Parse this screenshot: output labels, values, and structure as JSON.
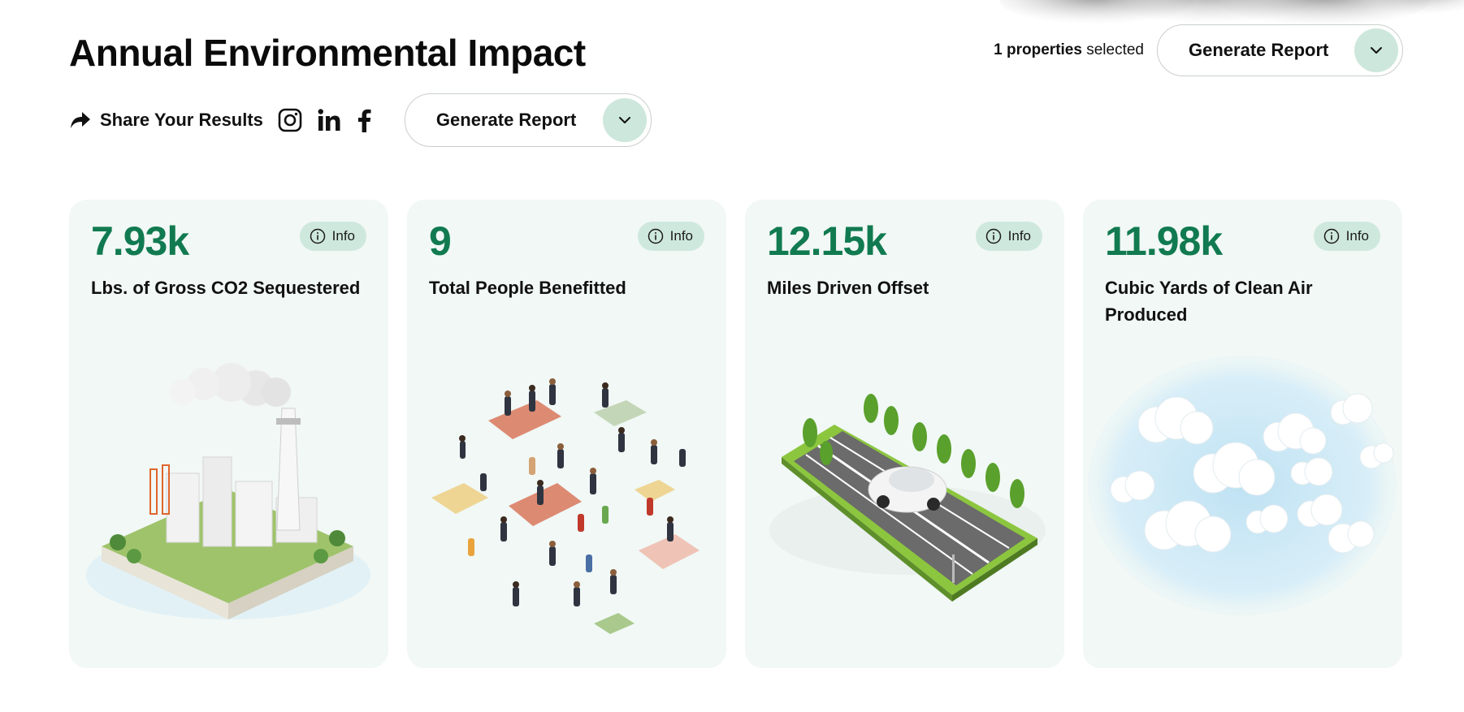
{
  "header": {
    "title": "Annual Environmental Impact",
    "selection": {
      "count": "1 properties",
      "suffix": "selected"
    },
    "generate_report_label": "Generate Report"
  },
  "share": {
    "label": "Share Your Results",
    "icons": [
      "share-arrow-icon",
      "instagram-icon",
      "linkedin-icon",
      "facebook-icon"
    ],
    "generate_report_label": "Generate Report"
  },
  "cards": [
    {
      "value": "7.93k",
      "info_label": "Info",
      "label": "Lbs. of Gross CO2 Sequestered",
      "illustration": "factory-illustration"
    },
    {
      "value": "9",
      "info_label": "Info",
      "label": "Total People Benefitted",
      "illustration": "people-illustration"
    },
    {
      "value": "12.15k",
      "info_label": "Info",
      "label": "Miles Driven Offset",
      "illustration": "road-car-illustration"
    },
    {
      "value": "11.98k",
      "info_label": "Info",
      "label": "Cubic Yards of Clean Air Produced",
      "illustration": "clouds-illustration"
    }
  ],
  "colors": {
    "accent": "#117a50",
    "card_bg": "#f1f8f5",
    "pill_bg": "#cfe8dd"
  }
}
